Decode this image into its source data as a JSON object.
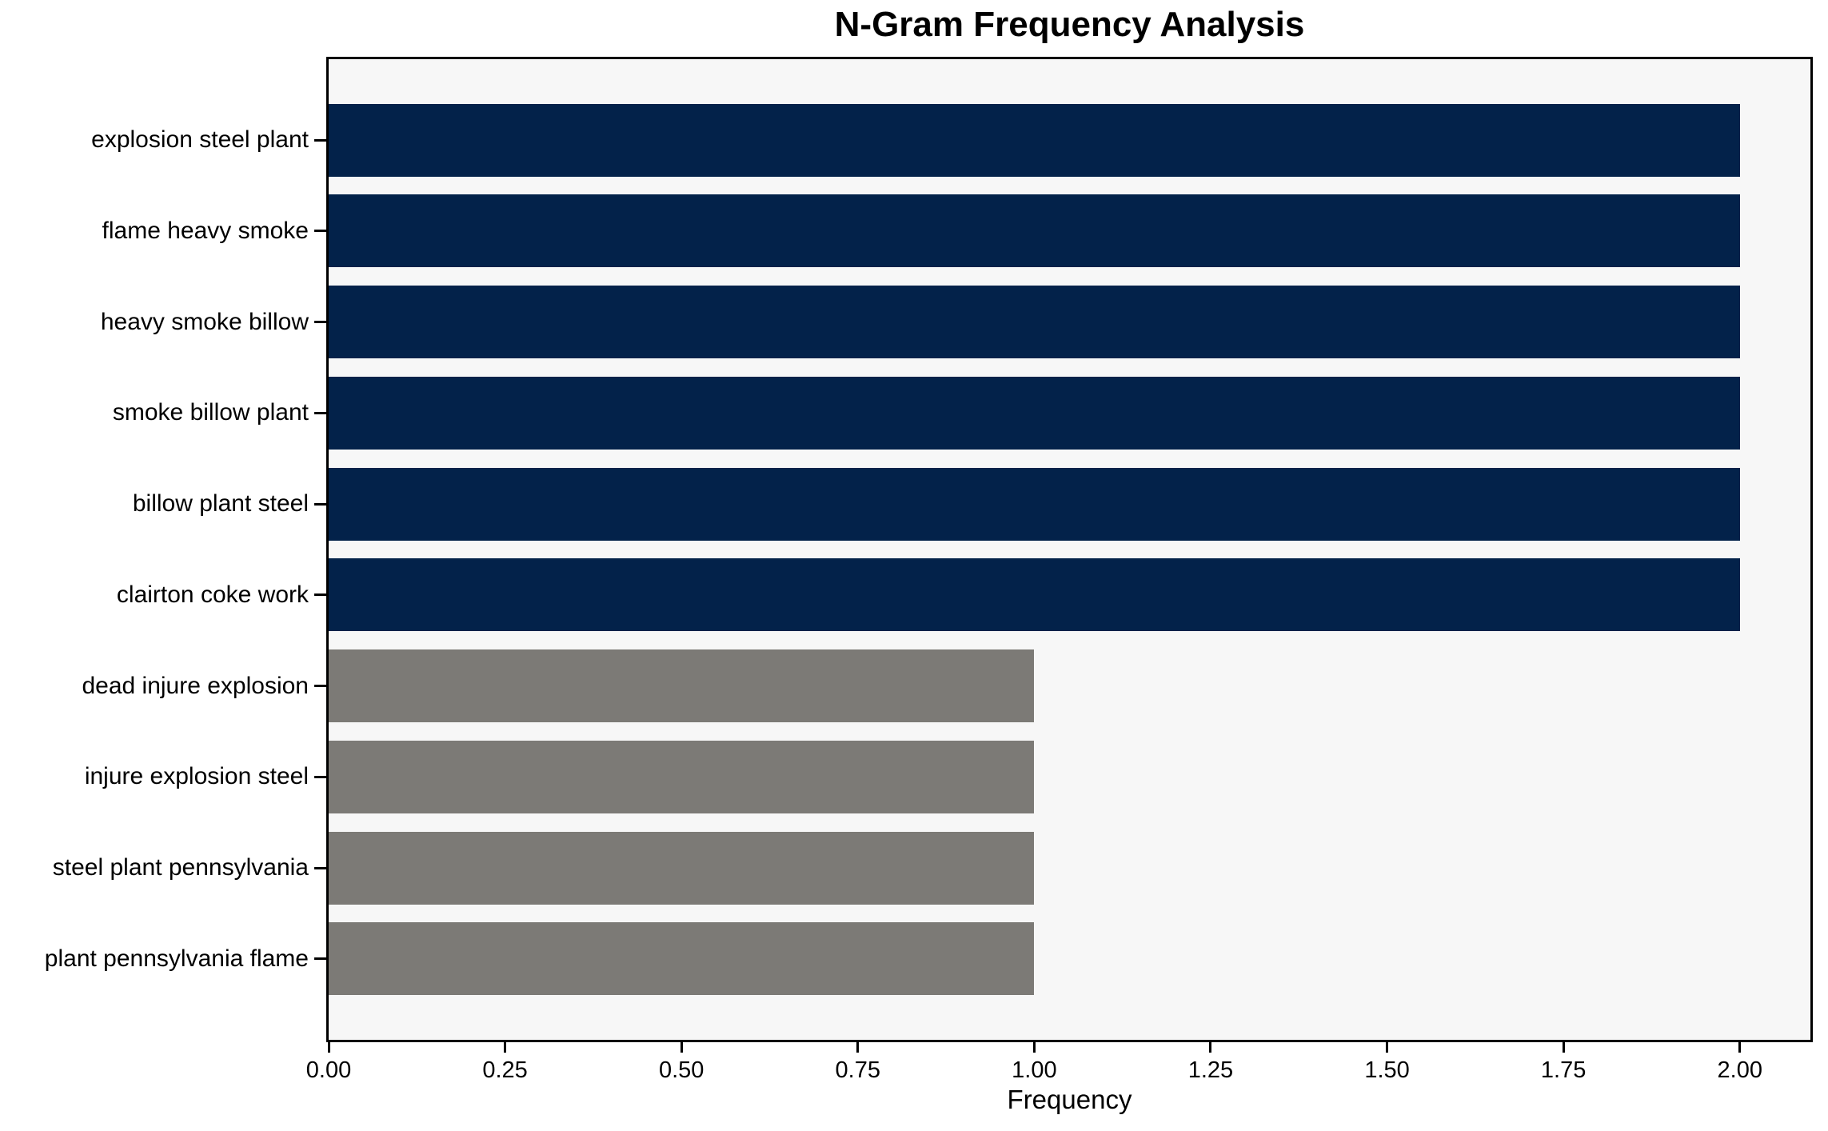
{
  "chart_data": {
    "type": "bar",
    "orientation": "horizontal",
    "title": "N-Gram Frequency Analysis",
    "xlabel": "Frequency",
    "ylabel": "",
    "categories": [
      "explosion steel plant",
      "flame heavy smoke",
      "heavy smoke billow",
      "smoke billow plant",
      "billow plant steel",
      "clairton coke work",
      "dead injure explosion",
      "injure explosion steel",
      "steel plant pennsylvania",
      "plant pennsylvania flame"
    ],
    "values": [
      2,
      2,
      2,
      2,
      2,
      2,
      1,
      1,
      1,
      1
    ],
    "bar_colors": [
      "#03224a",
      "#03224a",
      "#03224a",
      "#03224a",
      "#03224a",
      "#03224a",
      "#7c7a76",
      "#7c7a76",
      "#7c7a76",
      "#7c7a76"
    ],
    "xlim": [
      0,
      2.1
    ],
    "xticks": [
      0,
      0.25,
      0.5,
      0.75,
      1,
      1.25,
      1.5,
      1.75,
      2
    ],
    "xtick_labels": [
      "0.00",
      "0.25",
      "0.50",
      "0.75",
      "1.00",
      "1.25",
      "1.50",
      "1.75",
      "2.00"
    ],
    "grid": false,
    "legend": null,
    "plot_background": "#f7f7f7",
    "spine_color": "#000000",
    "tick_color": "#000000"
  }
}
